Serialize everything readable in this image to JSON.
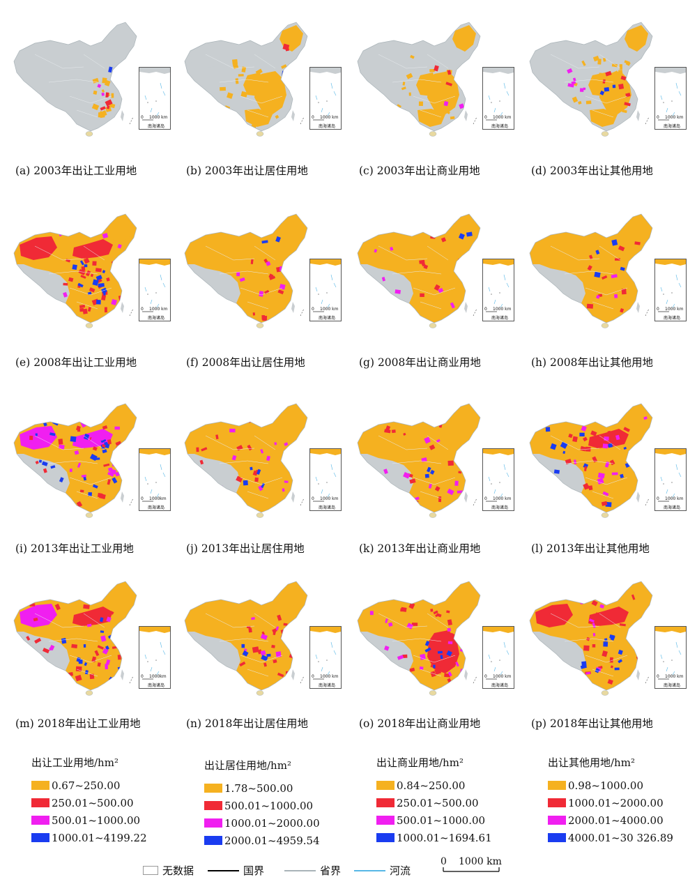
{
  "panels": [
    {
      "id": "a",
      "caption": "(a) 2003年出让工业用地",
      "map_scale_label": "1000 km",
      "inset_label": "南海诸岛"
    },
    {
      "id": "b",
      "caption": "(b) 2003年出让居住用地",
      "map_scale_label": "1000 km",
      "inset_label": "南海诸岛"
    },
    {
      "id": "c",
      "caption": "(c) 2003年出让商业用地",
      "map_scale_label": "1000 km",
      "inset_label": "南海诸岛"
    },
    {
      "id": "d",
      "caption": "(d) 2003年出让其他用地",
      "map_scale_label": "1000 km",
      "inset_label": "南海诸岛"
    },
    {
      "id": "e",
      "caption": "(e) 2008年出让工业用地",
      "map_scale_label": "1000 km",
      "inset_label": "南海诸岛"
    },
    {
      "id": "f",
      "caption": "(f) 2008年出让居住用地",
      "map_scale_label": "1000 km",
      "inset_label": "南海诸岛"
    },
    {
      "id": "g",
      "caption": "(g) 2008年出让商业用地",
      "map_scale_label": "1000 km",
      "inset_label": "南海诸岛"
    },
    {
      "id": "h",
      "caption": "(h) 2008年出让其他用地",
      "map_scale_label": "1000 km",
      "inset_label": "南海诸岛"
    },
    {
      "id": "i",
      "caption": "(i) 2013年出让工业用地",
      "map_scale_label": "1000km",
      "inset_label": "南海诸岛"
    },
    {
      "id": "j",
      "caption": "(j) 2013年出让居住用地",
      "map_scale_label": "1000 km",
      "inset_label": "南海诸岛"
    },
    {
      "id": "k",
      "caption": "(k) 2013年出让商业用地",
      "map_scale_label": "1000 km",
      "inset_label": "南海诸岛"
    },
    {
      "id": "l",
      "caption": "(l) 2013年出让其他用地",
      "map_scale_label": "1000 km",
      "inset_label": "南海诸岛"
    },
    {
      "id": "m",
      "caption": "(m) 2018年出让工业用地",
      "map_scale_label": "1000km",
      "inset_label": "南海诸岛"
    },
    {
      "id": "n",
      "caption": "(n) 2018年出让居住用地",
      "map_scale_label": "1000 km",
      "inset_label": "南海诸岛"
    },
    {
      "id": "o",
      "caption": "(o) 2018年出让商业用地",
      "map_scale_label": "1000 km",
      "inset_label": "南海诸岛"
    },
    {
      "id": "p",
      "caption": "(p) 2018年出让其他用地",
      "map_scale_label": "1000 km",
      "inset_label": "南海诸岛"
    }
  ],
  "legends": [
    {
      "title": "出让工业用地/hm²",
      "classes": [
        {
          "label": "0.67~250.00",
          "color": "#f5b120"
        },
        {
          "label": "250.01~500.00",
          "color": "#f02a36"
        },
        {
          "label": "500.01~1000.00",
          "color": "#f01ff0"
        },
        {
          "label": "1000.01~4199.22",
          "color": "#1a3cf0"
        }
      ]
    },
    {
      "title": "出让居住用地/hm²",
      "classes": [
        {
          "label": "1.78~500.00",
          "color": "#f5b120"
        },
        {
          "label": "500.01~1000.00",
          "color": "#f02a36"
        },
        {
          "label": "1000.01~2000.00",
          "color": "#f01ff0"
        },
        {
          "label": "2000.01~4959.54",
          "color": "#1a3cf0"
        }
      ]
    },
    {
      "title": "出让商业用地/hm²",
      "classes": [
        {
          "label": "0.84~250.00",
          "color": "#f5b120"
        },
        {
          "label": "250.01~500.00",
          "color": "#f02a36"
        },
        {
          "label": "500.01~1000.00",
          "color": "#f01ff0"
        },
        {
          "label": "1000.01~1694.61",
          "color": "#1a3cf0"
        }
      ]
    },
    {
      "title": "出让其他用地/hm²",
      "classes": [
        {
          "label": "0.98~1000.00",
          "color": "#f5b120"
        },
        {
          "label": "1000.01~2000.00",
          "color": "#f02a36"
        },
        {
          "label": "2000.01~4000.00",
          "color": "#f01ff0"
        },
        {
          "label": "4000.01~30 326.89",
          "color": "#1a3cf0"
        }
      ]
    }
  ],
  "bottom_legend": {
    "no_data": "无数据",
    "national_border": "国界",
    "provincial_border": "省界",
    "river": "河流",
    "scale_zero": "0",
    "scale_label": "1000 km"
  },
  "colors": {
    "no_data": "#c9ced1",
    "province_line": "#e6eaec",
    "river": "#56b7e6",
    "national_border": "#000000"
  }
}
